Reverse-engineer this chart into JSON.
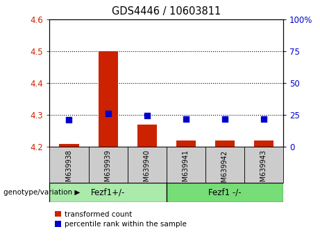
{
  "title": "GDS4446 / 10603811",
  "samples": [
    "GSM639938",
    "GSM639939",
    "GSM639940",
    "GSM639941",
    "GSM639942",
    "GSM639943"
  ],
  "transformed_count": [
    4.21,
    4.5,
    4.27,
    4.22,
    4.22,
    4.22
  ],
  "percentile_rank": [
    4.285,
    4.305,
    4.298,
    4.288,
    4.288,
    4.288
  ],
  "ylim": [
    4.2,
    4.6
  ],
  "y_ticks_left": [
    4.2,
    4.3,
    4.4,
    4.5,
    4.6
  ],
  "y_ticks_right_vals": [
    0,
    25,
    50,
    75,
    100
  ],
  "bar_color": "#cc2200",
  "dot_color": "#0000cc",
  "group1_label": "Fezf1+/-",
  "group2_label": "Fezf1 -/-",
  "group1_indices": [
    0,
    1,
    2
  ],
  "group2_indices": [
    3,
    4,
    5
  ],
  "genotype_label": "genotype/variation",
  "legend_red": "transformed count",
  "legend_blue": "percentile rank within the sample",
  "bar_color_legend": "#cc2200",
  "dot_color_legend": "#0000cc",
  "bg_gray": "#cccccc",
  "bg_green1": "#aaeaaa",
  "bg_green2": "#77dd77",
  "bar_width": 0.5,
  "dot_size": 40
}
